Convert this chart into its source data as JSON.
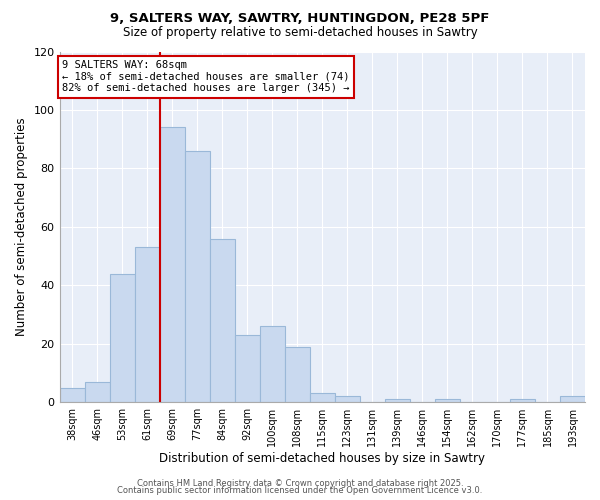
{
  "title": "9, SALTERS WAY, SAWTRY, HUNTINGDON, PE28 5PF",
  "subtitle": "Size of property relative to semi-detached houses in Sawtry",
  "xlabel": "Distribution of semi-detached houses by size in Sawtry",
  "ylabel": "Number of semi-detached properties",
  "bar_labels": [
    "38sqm",
    "46sqm",
    "53sqm",
    "61sqm",
    "69sqm",
    "77sqm",
    "84sqm",
    "92sqm",
    "100sqm",
    "108sqm",
    "115sqm",
    "123sqm",
    "131sqm",
    "139sqm",
    "146sqm",
    "154sqm",
    "162sqm",
    "170sqm",
    "177sqm",
    "185sqm",
    "193sqm"
  ],
  "bar_values": [
    5,
    7,
    44,
    53,
    94,
    86,
    56,
    23,
    26,
    19,
    3,
    2,
    0,
    1,
    0,
    1,
    0,
    0,
    1,
    0,
    2
  ],
  "bar_color": "#c9d9ef",
  "bar_edge_color": "#9ab8d8",
  "vline_index": 4,
  "vline_color": "#cc0000",
  "annotation_title": "9 SALTERS WAY: 68sqm",
  "annotation_line1": "← 18% of semi-detached houses are smaller (74)",
  "annotation_line2": "82% of semi-detached houses are larger (345) →",
  "annotation_box_color": "#ffffff",
  "annotation_box_edge": "#cc0000",
  "ylim": [
    0,
    120
  ],
  "yticks": [
    0,
    20,
    40,
    60,
    80,
    100,
    120
  ],
  "footer1": "Contains HM Land Registry data © Crown copyright and database right 2025.",
  "footer2": "Contains public sector information licensed under the Open Government Licence v3.0.",
  "background_color": "#ffffff",
  "plot_bg_color": "#e8eef8",
  "grid_color": "#ffffff",
  "title_fontsize": 9.5,
  "subtitle_fontsize": 8.5
}
